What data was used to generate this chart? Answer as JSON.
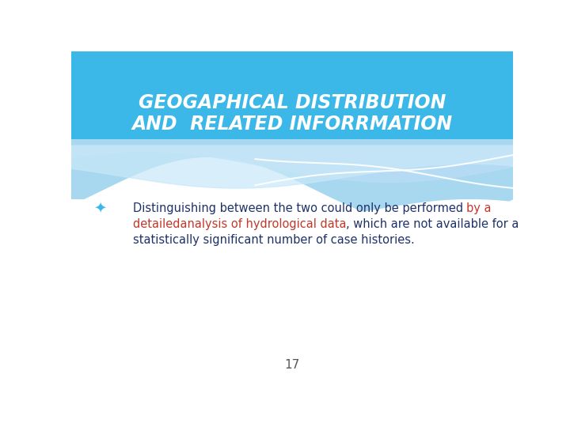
{
  "title_line1": "GEOGAPHICAL DISTRIBUTION",
  "title_line2": "AND  RELATED INFORRMATION",
  "title_color": "#FFFFFF",
  "title_bg_color": "#3BB8E8",
  "slide_bg_color": "#FFFFFF",
  "bullet_symbol": "★",
  "bullet_color": "#3BB8E8",
  "body_color": "#1F3268",
  "red_color": "#C0392B",
  "page_number": "17",
  "page_num_color": "#555555",
  "wave_bg_color": "#87CEEB",
  "wave_light": "#B8DFF5",
  "wave_lighter": "#D0EAF8"
}
